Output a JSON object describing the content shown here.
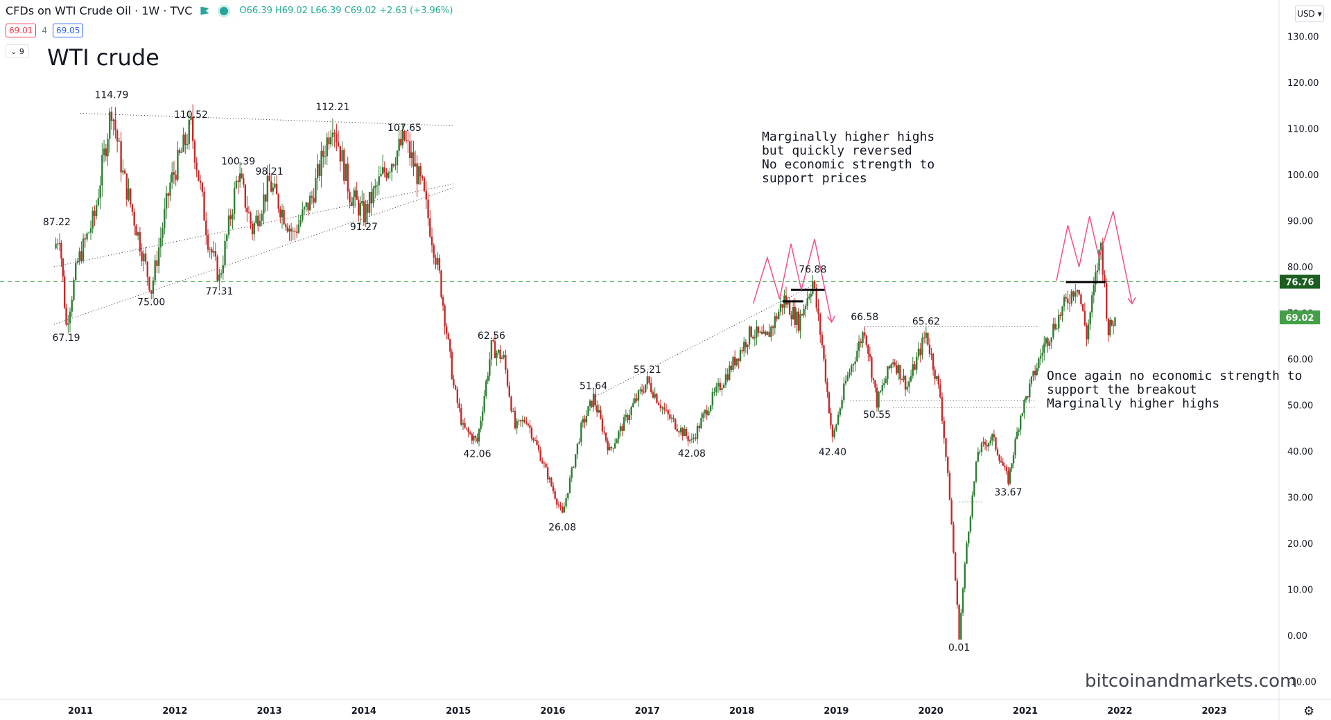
{
  "header": {
    "symbol": "CFDs on WTI Crude Oil · 1W · TVC",
    "ohlc": "O66.39 H69.02 L66.39 C69.02 +2.63 (+3.96%)",
    "sell_price": "69.01",
    "spread": "4",
    "buy_price": "69.05",
    "collapse_label": "⌄ 9"
  },
  "title": "WTI crude",
  "currency_button": "USD ▾",
  "watermark": "bitcoinandmarkets.com",
  "notes": {
    "note1": [
      "Marginally higher highs",
      "but quickly reversed",
      "No economic strength to",
      "support prices"
    ],
    "note2": [
      "Once again no economic strength to",
      "support the breakout",
      "Marginally higher highs"
    ]
  },
  "colors": {
    "up": "#2e7d32",
    "down": "#c62828",
    "pattern": "#f0508c",
    "level_line": "#4caf50",
    "price_tag": "#2e7d32"
  },
  "chart_data": {
    "type": "candlestick",
    "title": "WTI crude",
    "xlabel": "",
    "ylabel": "",
    "ylim": [
      -10,
      135
    ],
    "x_ticks": [
      "2011",
      "2012",
      "2013",
      "2014",
      "2015",
      "2016",
      "2017",
      "2018",
      "2019",
      "2020",
      "2021",
      "2022",
      "2023"
    ],
    "y_ticks": [
      "130.00",
      "120.00",
      "110.00",
      "100.00",
      "90.00",
      "80.00",
      "70.00",
      "60.00",
      "50.00",
      "40.00",
      "30.00",
      "20.00",
      "10.00",
      "0.00",
      "-10.00"
    ],
    "annotations": [
      {
        "label": "87.22",
        "date": 2010.75,
        "value": 87.22
      },
      {
        "label": "114.79",
        "date": 2011.33,
        "value": 114.79
      },
      {
        "label": "67.19",
        "date": 2010.85,
        "value": 67.19
      },
      {
        "label": "75.00",
        "date": 2011.75,
        "value": 75.0
      },
      {
        "label": "110.52",
        "date": 2012.17,
        "value": 110.52
      },
      {
        "label": "77.31",
        "date": 2012.47,
        "value": 77.31
      },
      {
        "label": "100.39",
        "date": 2012.67,
        "value": 100.39
      },
      {
        "label": "98.21",
        "date": 2013.0,
        "value": 98.21
      },
      {
        "label": "112.21",
        "date": 2013.67,
        "value": 112.21
      },
      {
        "label": "107.65",
        "date": 2014.43,
        "value": 107.65
      },
      {
        "label": "91.27",
        "date": 2014.0,
        "value": 91.27
      },
      {
        "label": "62.56",
        "date": 2015.35,
        "value": 62.56
      },
      {
        "label": "42.06",
        "date": 2015.2,
        "value": 42.06
      },
      {
        "label": "26.08",
        "date": 2016.1,
        "value": 26.08
      },
      {
        "label": "51.64",
        "date": 2016.43,
        "value": 51.64
      },
      {
        "label": "55.21",
        "date": 2017.0,
        "value": 55.21
      },
      {
        "label": "42.08",
        "date": 2017.47,
        "value": 42.08
      },
      {
        "label": "76.88",
        "date": 2018.75,
        "value": 76.88
      },
      {
        "label": "42.40",
        "date": 2018.96,
        "value": 42.4
      },
      {
        "label": "66.58",
        "date": 2019.3,
        "value": 66.58
      },
      {
        "label": "65.62",
        "date": 2019.95,
        "value": 65.62
      },
      {
        "label": "50.55",
        "date": 2019.43,
        "value": 50.55
      },
      {
        "label": "0.01",
        "date": 2020.3,
        "value": 0.01
      },
      {
        "label": "33.67",
        "date": 2020.82,
        "value": 33.67
      }
    ],
    "price_path": [
      [
        2010.72,
        84
      ],
      [
        2010.78,
        87.22
      ],
      [
        2010.85,
        67.19
      ],
      [
        2010.97,
        81
      ],
      [
        2011.15,
        91
      ],
      [
        2011.33,
        114.79
      ],
      [
        2011.45,
        100
      ],
      [
        2011.55,
        92
      ],
      [
        2011.75,
        75.0
      ],
      [
        2011.95,
        98
      ],
      [
        2012.17,
        110.52
      ],
      [
        2012.35,
        86
      ],
      [
        2012.47,
        77.31
      ],
      [
        2012.67,
        100.39
      ],
      [
        2012.82,
        88
      ],
      [
        2013.0,
        98.21
      ],
      [
        2013.25,
        87
      ],
      [
        2013.45,
        95
      ],
      [
        2013.67,
        112.21
      ],
      [
        2013.85,
        96
      ],
      [
        2014.0,
        91.27
      ],
      [
        2014.2,
        100
      ],
      [
        2014.43,
        107.65
      ],
      [
        2014.62,
        97
      ],
      [
        2014.8,
        78
      ],
      [
        2014.95,
        54
      ],
      [
        2015.05,
        45
      ],
      [
        2015.2,
        42.06
      ],
      [
        2015.35,
        62.56
      ],
      [
        2015.48,
        60
      ],
      [
        2015.6,
        45
      ],
      [
        2015.72,
        47
      ],
      [
        2015.85,
        40
      ],
      [
        2016.1,
        26.08
      ],
      [
        2016.3,
        45
      ],
      [
        2016.43,
        51.64
      ],
      [
        2016.6,
        40
      ],
      [
        2016.85,
        50
      ],
      [
        2017.0,
        55.21
      ],
      [
        2017.2,
        48
      ],
      [
        2017.47,
        42.08
      ],
      [
        2017.65,
        50
      ],
      [
        2017.85,
        57
      ],
      [
        2018.1,
        66
      ],
      [
        2018.25,
        64
      ],
      [
        2018.45,
        73
      ],
      [
        2018.6,
        68
      ],
      [
        2018.75,
        76.88
      ],
      [
        2018.85,
        63
      ],
      [
        2018.96,
        42.4
      ],
      [
        2019.1,
        55
      ],
      [
        2019.3,
        66.58
      ],
      [
        2019.43,
        50.55
      ],
      [
        2019.6,
        60
      ],
      [
        2019.75,
        54
      ],
      [
        2019.95,
        65.62
      ],
      [
        2020.1,
        52
      ],
      [
        2020.2,
        30
      ],
      [
        2020.3,
        0.01
      ],
      [
        2020.38,
        20
      ],
      [
        2020.5,
        40
      ],
      [
        2020.65,
        43
      ],
      [
        2020.82,
        33.67
      ],
      [
        2020.95,
        48
      ],
      [
        2021.2,
        63
      ],
      [
        2021.45,
        73
      ],
      [
        2021.55,
        76.5
      ],
      [
        2021.65,
        65
      ],
      [
        2021.8,
        85
      ],
      [
        2021.88,
        66
      ],
      [
        2021.95,
        69.02
      ]
    ],
    "trendlines": [
      {
        "from": [
          2010.72,
          80.0
        ],
        "to": [
          2014.95,
          98.0
        ],
        "style": "dotted"
      },
      {
        "from": [
          2010.72,
          67.5
        ],
        "to": [
          2014.95,
          97.2
        ],
        "style": "dotted"
      },
      {
        "from": [
          2011.0,
          113.3
        ],
        "to": [
          2014.95,
          110.6
        ],
        "style": "dotted"
      },
      {
        "from": [
          2016.43,
          51.64
        ],
        "to": [
          2018.75,
          76.0
        ],
        "style": "dotted"
      }
    ],
    "level_lines": [
      {
        "value": 76.76,
        "style": "dashed",
        "label": "76.76"
      }
    ],
    "current_price": {
      "value": 69.02,
      "label": "69.02"
    },
    "pattern_paths": [
      [
        [
          2018.12,
          72
        ],
        [
          2018.27,
          82
        ],
        [
          2018.4,
          73
        ],
        [
          2018.52,
          85
        ],
        [
          2018.63,
          75
        ],
        [
          2018.77,
          86
        ],
        [
          2018.95,
          68
        ]
      ],
      [
        [
          2021.33,
          77
        ],
        [
          2021.45,
          89
        ],
        [
          2021.57,
          80
        ],
        [
          2021.68,
          91
        ],
        [
          2021.78,
          82
        ],
        [
          2021.93,
          92
        ],
        [
          2022.13,
          72
        ]
      ]
    ],
    "pattern_arrows": [
      [
        2018.95,
        68
      ],
      [
        2022.13,
        72
      ]
    ],
    "resistance_bars": [
      {
        "from": 2018.43,
        "to": 2018.65,
        "value": 72.5
      },
      {
        "from": 2018.52,
        "to": 2018.88,
        "value": 75.0
      },
      {
        "from": 2021.43,
        "to": 2021.85,
        "value": 76.7
      }
    ],
    "dotted_levels": [
      {
        "from": 2019.15,
        "to": 2021.1,
        "value": 51.0
      },
      {
        "from": 2019.6,
        "to": 2021.1,
        "value": 49.4
      },
      {
        "from": 2020.3,
        "to": 2020.55,
        "value": 29.0
      },
      {
        "from": 2019.3,
        "to": 2021.15,
        "value": 67.0
      }
    ]
  }
}
